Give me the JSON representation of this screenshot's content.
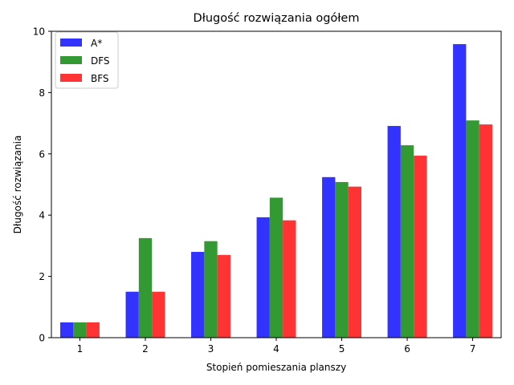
{
  "chart_data": {
    "type": "bar",
    "title": "Długość rozwiązania ogółem",
    "xlabel": "Stopień pomieszania planszy",
    "ylabel": "Długość rozwiązania",
    "categories": [
      "1",
      "2",
      "3",
      "4",
      "5",
      "6",
      "7"
    ],
    "ylim": [
      0,
      10
    ],
    "yticks": [
      "0",
      "2",
      "4",
      "6",
      "8",
      "10"
    ],
    "grid": false,
    "legend_position": "top-left",
    "series": [
      {
        "name": "A*",
        "color": "#3333ff",
        "values": [
          0.5,
          1.5,
          2.8,
          3.93,
          5.24,
          6.91,
          9.58
        ]
      },
      {
        "name": "DFS",
        "color": "#339933",
        "values": [
          0.5,
          3.25,
          3.15,
          4.57,
          5.08,
          6.28,
          7.09
        ]
      },
      {
        "name": "BFS",
        "color": "#ff3333",
        "values": [
          0.5,
          1.5,
          2.7,
          3.83,
          4.93,
          5.94,
          6.96
        ]
      }
    ]
  }
}
